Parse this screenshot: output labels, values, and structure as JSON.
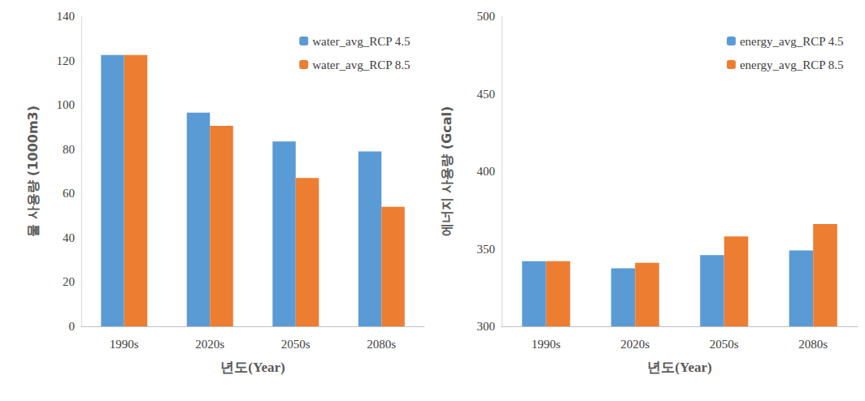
{
  "chart_data": [
    {
      "type": "bar",
      "xlabel": "년도(Year)",
      "ylabel": "물 사용량 (1000m3)",
      "categories": [
        "1990s",
        "2020s",
        "2050s",
        "2080s"
      ],
      "series": [
        {
          "name": "water_avg_RCP 4.5",
          "color": "#5b9bd5",
          "values": [
            122.5,
            96.5,
            83.5,
            79
          ]
        },
        {
          "name": "water_avg_RCP 8.5",
          "color": "#ed7d31",
          "values": [
            122.5,
            90.5,
            67,
            54
          ]
        }
      ],
      "ylim": [
        0,
        140
      ],
      "yticks": [
        0,
        20,
        40,
        60,
        80,
        100,
        120,
        140
      ],
      "grid": false,
      "legend": "upper right"
    },
    {
      "type": "bar",
      "xlabel": "년도(Year)",
      "ylabel": "에너지 사용량 (Gcal)",
      "categories": [
        "1990s",
        "2020s",
        "2050s",
        "2080s"
      ],
      "series": [
        {
          "name": "energy_avg_RCP 4.5",
          "color": "#5b9bd5",
          "values": [
            342,
            337.5,
            346,
            349
          ]
        },
        {
          "name": "energy_avg_RCP 8.5",
          "color": "#ed7d31",
          "values": [
            342,
            341,
            358,
            366
          ]
        }
      ],
      "ylim": [
        300,
        500
      ],
      "yticks": [
        300,
        350,
        400,
        450,
        500
      ],
      "grid": false,
      "legend": "upper right"
    }
  ]
}
